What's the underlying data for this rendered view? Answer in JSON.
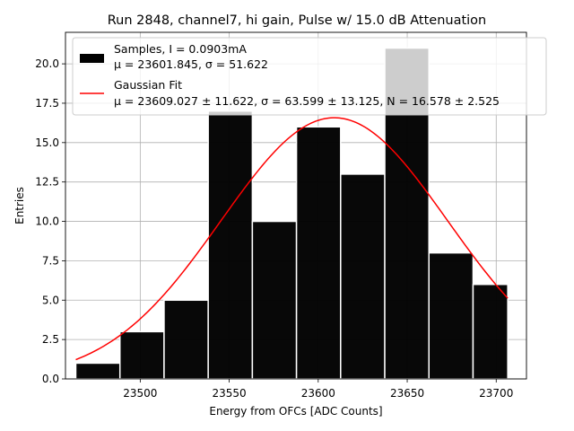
{
  "chart_data": {
    "type": "bar",
    "title": "Run 2848, channel7, hi gain, Pulse w/ 15.0 dB Attenuation",
    "xlabel": "Energy from OFCs [ADC Counts]",
    "ylabel": "Entries",
    "xlim": [
      23458,
      23717
    ],
    "ylim": [
      0,
      22
    ],
    "xticks": [
      "23500",
      "23550",
      "23600",
      "23650",
      "23700"
    ],
    "yticks": [
      "0.0",
      "2.5",
      "5.0",
      "7.5",
      "10.0",
      "12.5",
      "15.0",
      "17.5",
      "20.0"
    ],
    "grid": true,
    "legend_position": "top-right",
    "bins": {
      "edges": [
        23463.8,
        23488.6,
        23513.4,
        23538.2,
        23563.0,
        23587.8,
        23612.6,
        23637.4,
        23662.2,
        23687.0,
        23706.5
      ],
      "counts": [
        1,
        3,
        5,
        17,
        10,
        16,
        13,
        21,
        8,
        6
      ]
    },
    "fit": {
      "mu": 23609.027,
      "sigma": 63.599,
      "N": 16.578,
      "x_range": [
        23463.8,
        23706.5
      ]
    },
    "series": [
      {
        "name": "Samples, I = 0.0903mA",
        "detail": "μ = 23601.845, σ = 51.622",
        "color": "#000000"
      },
      {
        "name": "Gaussian Fit",
        "detail": "μ = 23609.027 ± 11.622, σ = 63.599 ± 13.125, N = 16.578 ± 2.525",
        "color": "#ff0000"
      }
    ]
  }
}
